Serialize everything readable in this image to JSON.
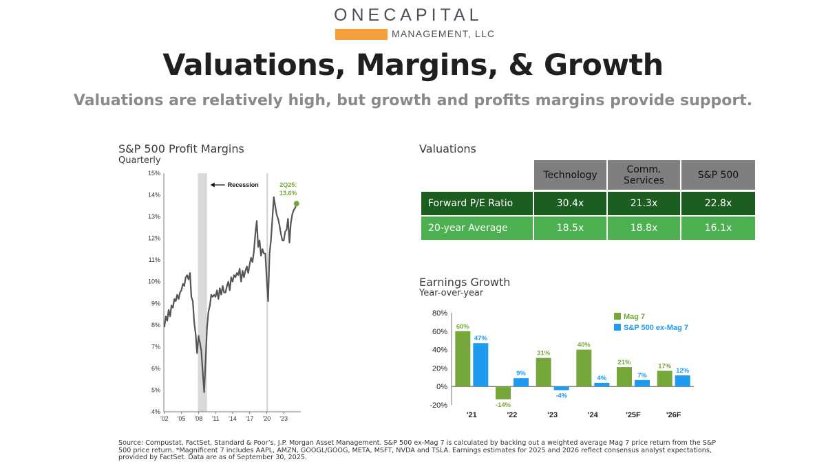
{
  "logo": {
    "word1": "ONE",
    "word2": "CAPITAL",
    "sub": "MANAGEMENT, LLC"
  },
  "title": "Valuations, Margins, & Growth",
  "subtitle": "Valuations are relatively high, but growth and profits margins provide support.",
  "profit_margins": {
    "title": "S&P 500 Profit Margins",
    "subtitle": "Quarterly"
  },
  "valuations": {
    "title": "Valuations",
    "headers": [
      "Technology",
      "Comm. Services",
      "S&P 500"
    ],
    "rows": [
      {
        "label": "Forward P/E Ratio",
        "values": [
          "30.4x",
          "21.3x",
          "22.8x"
        ]
      },
      {
        "label": "20-year Average",
        "values": [
          "18.5x",
          "18.8x",
          "16.1x"
        ]
      }
    ]
  },
  "earnings_growth": {
    "title": "Earnings Growth",
    "subtitle": "Year-over-year"
  },
  "footnote": "Source: Compustat, FactSet, Standard & Poor’s, J.P. Morgan Asset Management.  S&P 500 ex-Mag 7 is calculated by backing out a weighted average Mag 7 price return from the S&P 500 price return. *Magnificent 7 includes AAPL, AMZN, GOOGL/GOOG, META, MSFT, NVDA and TSLA.  Earnings estimates for 2025 and 2026 reflect consensus analyst expectations, provided by FactSet.  Data are as of September 30, 2025.",
  "chart_data": [
    {
      "type": "line",
      "ylim": [
        4,
        15
      ],
      "yticks": [
        "4%",
        "5%",
        "6%",
        "7%",
        "8%",
        "9%",
        "10%",
        "11%",
        "12%",
        "13%",
        "14%",
        "15%"
      ],
      "xticks": [
        "'02",
        "'05",
        "'08",
        "'11",
        "'14",
        "'17",
        "'20",
        "'23"
      ],
      "recession_label": "Recession",
      "recession": [
        2007.9,
        2009.5
      ],
      "vline": 2020.1,
      "annotation": {
        "text1": "2Q25:",
        "text2": "13.6%",
        "x": 2025.25,
        "y": 13.6
      },
      "line_color": "#555555",
      "marker_color": "#76a73a",
      "series": [
        {
          "x": [
            2002,
            2002.25,
            2002.5,
            2002.75,
            2003,
            2003.25,
            2003.5,
            2003.75,
            2004,
            2004.25,
            2004.5,
            2004.75,
            2005,
            2005.25,
            2005.5,
            2005.75,
            2006,
            2006.25,
            2006.5,
            2006.75,
            2007,
            2007.25,
            2007.5,
            2007.75,
            2008,
            2008.25,
            2008.5,
            2008.75,
            2009,
            2009.25,
            2009.5,
            2009.75,
            2010,
            2010.25,
            2010.5,
            2010.75,
            2011,
            2011.25,
            2011.5,
            2011.75,
            2012,
            2012.25,
            2012.5,
            2012.75,
            2013,
            2013.25,
            2013.5,
            2013.75,
            2014,
            2014.25,
            2014.5,
            2014.75,
            2015,
            2015.25,
            2015.5,
            2015.75,
            2016,
            2016.25,
            2016.5,
            2016.75,
            2017,
            2017.25,
            2017.5,
            2017.75,
            2018,
            2018.25,
            2018.5,
            2018.75,
            2019,
            2019.25,
            2019.5,
            2019.75,
            2020,
            2020.25,
            2020.5,
            2020.75,
            2021,
            2021.25,
            2021.5,
            2021.75,
            2022,
            2022.25,
            2022.5,
            2022.75,
            2023,
            2023.25,
            2023.5,
            2023.75,
            2024,
            2024.25,
            2024.5,
            2024.75,
            2025,
            2025.25
          ],
          "y": [
            7.9,
            8.4,
            8.2,
            8.7,
            8.4,
            8.9,
            8.8,
            9.2,
            9.1,
            9.4,
            9.2,
            9.5,
            9.6,
            9.9,
            9.8,
            10.2,
            10.3,
            10.1,
            10.4,
            9.3,
            9.1,
            8.1,
            7.6,
            6.7,
            7.5,
            7.2,
            6.8,
            5.8,
            4.9,
            6.4,
            7.9,
            8.6,
            8.9,
            9.4,
            9.3,
            9.4,
            9.3,
            9.6,
            9.2,
            9.7,
            9.4,
            9.8,
            9.5,
            9.5,
            9.8,
            10.0,
            9.6,
            10.2,
            10.0,
            10.3,
            10.2,
            10.4,
            10.3,
            10.6,
            10.0,
            10.5,
            10.2,
            10.5,
            10.7,
            10.4,
            10.8,
            11.1,
            10.9,
            11.4,
            12.2,
            12.8,
            11.6,
            11.9,
            11.2,
            11.5,
            11.3,
            11.3,
            10.1,
            9.1,
            11.3,
            11.9,
            12.9,
            13.9,
            13.5,
            13.1,
            12.9,
            12.6,
            12.2,
            11.9,
            11.9,
            12.3,
            12.4,
            12.9,
            11.8,
            12.7,
            13.1,
            13.3,
            13.4,
            13.6
          ]
        }
      ]
    },
    {
      "type": "bar",
      "categories": [
        "'21",
        "'22",
        "'23",
        "'24",
        "'25F",
        "'26F"
      ],
      "ylim": [
        -20,
        80
      ],
      "yticks": [
        "-20%",
        "0%",
        "20%",
        "40%",
        "60%",
        "80%"
      ],
      "series": [
        {
          "name": "Mag 7",
          "color": "#76a73a",
          "values": [
            60,
            -14,
            31,
            40,
            21,
            17
          ],
          "labels": [
            "60%",
            "-14%",
            "31%",
            "40%",
            "21%",
            "17%"
          ]
        },
        {
          "name": "S&P 500 ex-Mag 7",
          "color": "#1e9af0",
          "values": [
            47,
            9,
            -4,
            4,
            7,
            12
          ],
          "labels": [
            "47%",
            "9%",
            "-4%",
            "4%",
            "7%",
            "12%"
          ]
        }
      ]
    }
  ]
}
